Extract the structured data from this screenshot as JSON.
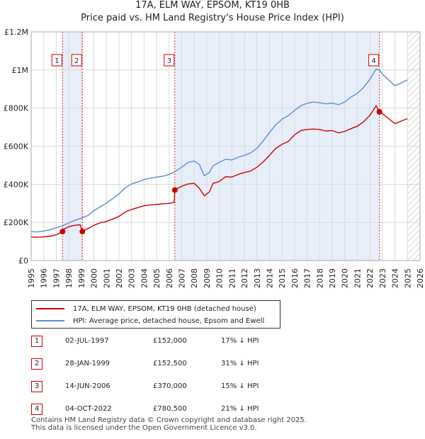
{
  "chart_data": {
    "type": "line",
    "title": "17A, ELM WAY, EPSOM, KT19 0HB",
    "subtitle": "Price paid vs. HM Land Registry's House Price Index (HPI)",
    "xlabel": "",
    "ylabel": "",
    "xlim": [
      1995,
      2026
    ],
    "ylim": [
      0,
      1200000
    ],
    "y_ticks": [
      {
        "value": 0,
        "label": "£0"
      },
      {
        "value": 200000,
        "label": "£200K"
      },
      {
        "value": 400000,
        "label": "£400K"
      },
      {
        "value": 600000,
        "label": "£600K"
      },
      {
        "value": 800000,
        "label": "£800K"
      },
      {
        "value": 1000000,
        "label": "£1M"
      },
      {
        "value": 1200000,
        "label": "£1.2M"
      }
    ],
    "x_ticks": [
      "1995",
      "1996",
      "1997",
      "1998",
      "1999",
      "2000",
      "2001",
      "2002",
      "2003",
      "2004",
      "2005",
      "2006",
      "2007",
      "2008",
      "2009",
      "2010",
      "2011",
      "2012",
      "2013",
      "2014",
      "2015",
      "2016",
      "2017",
      "2018",
      "2019",
      "2020",
      "2021",
      "2022",
      "2023",
      "2024",
      "2025",
      "2026"
    ],
    "grid": true,
    "colors": {
      "property": "#cc0000",
      "hpi": "#5b8dd6",
      "shade": "#e8eef9",
      "grid": "#d9d9d9",
      "vline": "#cc0000"
    },
    "series": [
      {
        "name": "17A, ELM WAY, EPSOM, KT19 0HB (detached house)",
        "x": [
          1995.0,
          1995.5,
          1996.0,
          1996.5,
          1997.0,
          1997.3,
          1997.5,
          1997.6,
          1998.0,
          1998.5,
          1998.9,
          1999.08,
          1999.3,
          1999.6,
          2000.0,
          2000.5,
          2001.0,
          2001.5,
          2002.0,
          2002.5,
          2003.0,
          2003.5,
          2004.0,
          2004.5,
          2005.0,
          2005.5,
          2006.0,
          2006.4,
          2006.45,
          2006.5,
          2007.0,
          2007.5,
          2008.0,
          2008.4,
          2008.8,
          2009.2,
          2009.5,
          2010.0,
          2010.5,
          2011.0,
          2011.5,
          2012.0,
          2012.5,
          2013.0,
          2013.5,
          2014.0,
          2014.5,
          2015.0,
          2015.5,
          2016.0,
          2016.5,
          2017.0,
          2017.5,
          2018.0,
          2018.5,
          2019.0,
          2019.5,
          2020.0,
          2020.5,
          2021.0,
          2021.5,
          2022.0,
          2022.5,
          2022.76,
          2023.0,
          2023.5,
          2024.0,
          2024.5,
          2025.0
        ],
        "values": [
          125000,
          122000,
          125000,
          128000,
          135000,
          145000,
          152000,
          165000,
          178000,
          185000,
          188000,
          152500,
          162000,
          170000,
          185000,
          198000,
          205000,
          218000,
          232000,
          255000,
          268000,
          278000,
          288000,
          292000,
          295000,
          298000,
          300000,
          305000,
          370000,
          372000,
          390000,
          402000,
          405000,
          380000,
          340000,
          360000,
          405000,
          415000,
          440000,
          438000,
          452000,
          462000,
          470000,
          490000,
          518000,
          552000,
          588000,
          610000,
          625000,
          660000,
          682000,
          688000,
          690000,
          688000,
          680000,
          682000,
          670000,
          678000,
          692000,
          705000,
          728000,
          762000,
          812000,
          780500,
          770000,
          745000,
          718000,
          732000,
          745000
        ]
      },
      {
        "name": "HPI: Average price, detached house, Epsom and Ewell",
        "x": [
          1995.0,
          1995.5,
          1996.0,
          1996.5,
          1997.0,
          1997.5,
          1998.0,
          1998.5,
          1999.0,
          1999.5,
          2000.0,
          2000.5,
          2001.0,
          2001.5,
          2002.0,
          2002.5,
          2003.0,
          2003.5,
          2004.0,
          2004.5,
          2005.0,
          2005.5,
          2006.0,
          2006.5,
          2007.0,
          2007.5,
          2008.0,
          2008.4,
          2008.8,
          2009.2,
          2009.5,
          2010.0,
          2010.5,
          2011.0,
          2011.5,
          2012.0,
          2012.5,
          2013.0,
          2013.5,
          2014.0,
          2014.5,
          2015.0,
          2015.5,
          2016.0,
          2016.5,
          2017.0,
          2017.5,
          2018.0,
          2018.5,
          2019.0,
          2019.5,
          2020.0,
          2020.5,
          2021.0,
          2021.5,
          2022.0,
          2022.5,
          2022.8,
          2023.0,
          2023.5,
          2024.0,
          2024.5,
          2025.0
        ],
        "values": [
          152000,
          150000,
          155000,
          162000,
          172000,
          182000,
          198000,
          212000,
          222000,
          235000,
          262000,
          282000,
          302000,
          325000,
          350000,
          382000,
          402000,
          412000,
          425000,
          432000,
          438000,
          442000,
          452000,
          468000,
          490000,
          515000,
          522000,
          505000,
          445000,
          462000,
          498000,
          515000,
          532000,
          528000,
          542000,
          552000,
          565000,
          590000,
          628000,
          672000,
          712000,
          742000,
          760000,
          788000,
          812000,
          825000,
          832000,
          828000,
          822000,
          826000,
          818000,
          832000,
          858000,
          878000,
          908000,
          952000,
          1005000,
          998000,
          978000,
          948000,
          918000,
          932000,
          948000
        ]
      }
    ],
    "sales": [
      {
        "num": "1",
        "date": "02-JUL-1997",
        "x": 1997.5,
        "price": "£152,000",
        "price_value": 152000,
        "hpi": "17% ↓ HPI"
      },
      {
        "num": "2",
        "date": "28-JAN-1999",
        "x": 1999.08,
        "price": "£152,500",
        "price_value": 152500,
        "hpi": "31% ↓ HPI"
      },
      {
        "num": "3",
        "date": "14-JUN-2006",
        "x": 2006.45,
        "price": "£370,000",
        "price_value": 370000,
        "hpi": "15% ↓ HPI"
      },
      {
        "num": "4",
        "date": "04-OCT-2022",
        "x": 2022.76,
        "price": "£780,500",
        "price_value": 780500,
        "hpi": "21% ↓ HPI"
      }
    ],
    "shaded_spans": [
      [
        1997.5,
        1999.08
      ],
      [
        2006.45,
        2022.76
      ]
    ],
    "hatched_from": 2025.0,
    "footer": [
      "Contains HM Land Registry data © Crown copyright and database right 2025.",
      "This data is licensed under the Open Government Licence v3.0."
    ]
  }
}
